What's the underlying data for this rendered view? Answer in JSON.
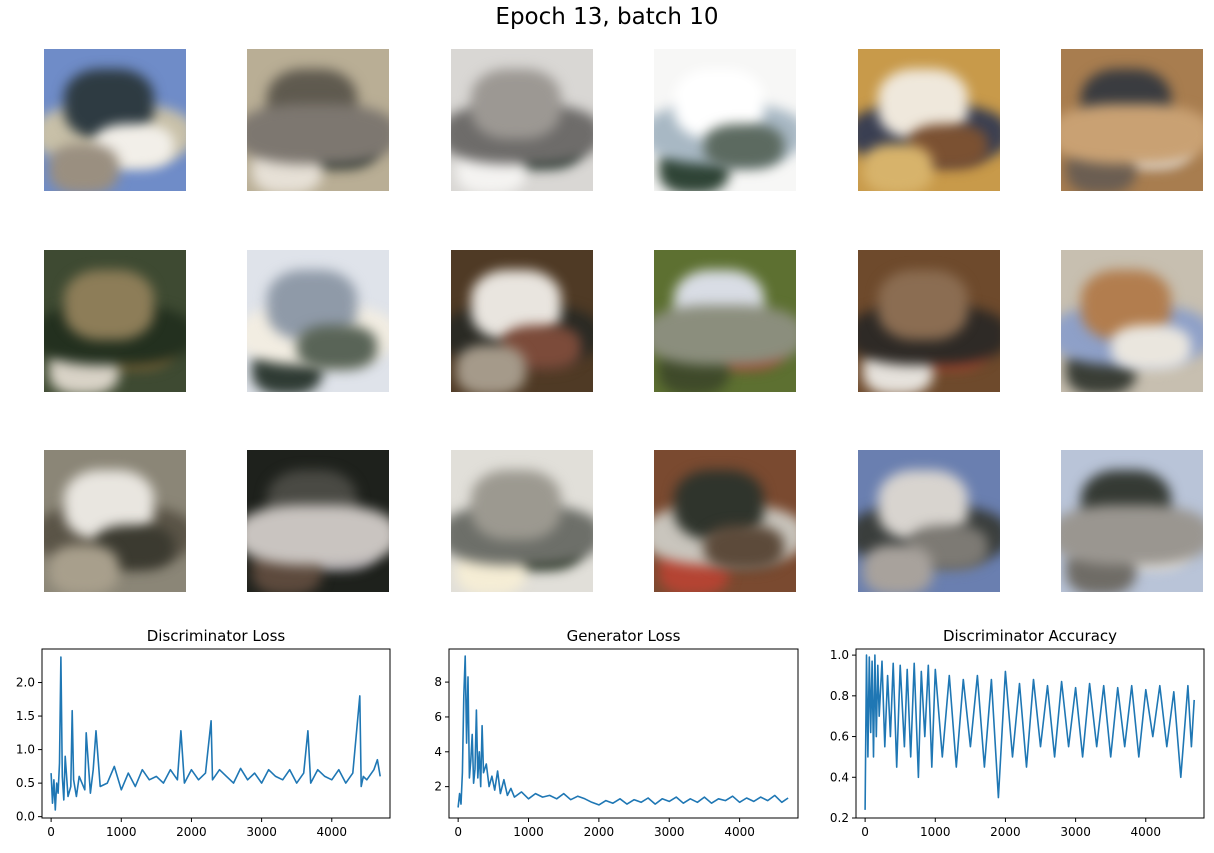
{
  "figure": {
    "title": "Epoch 13, batch 10",
    "samples": [
      {
        "colors": [
          "#6f8cc8",
          "#c8c0a8",
          "#2e3b42",
          "#f2efe9",
          "#9a8f80"
        ]
      },
      {
        "colors": [
          "#b9ae95",
          "#5f5a4f",
          "#2d3630",
          "#e6e0d6",
          "#7d7770"
        ]
      },
      {
        "colors": [
          "#d9d7d4",
          "#2a3a32",
          "#f4f3f1",
          "#6e6c6a",
          "#9c9893"
        ]
      },
      {
        "colors": [
          "#f7f7f6",
          "#2f4436",
          "#a8b8c4",
          "#ffffff",
          "#5c6a60"
        ]
      },
      {
        "colors": [
          "#c89a4a",
          "#3a3f52",
          "#efe8dc",
          "#7b5132",
          "#d7b36b"
        ]
      },
      {
        "colors": [
          "#a87d4f",
          "#3a3c40",
          "#e0dcd8",
          "#6b5e52",
          "#c9a173"
        ]
      },
      {
        "colors": [
          "#3e4a32",
          "#7a6438",
          "#d9d3c7",
          "#23301f",
          "#8d7d58"
        ]
      },
      {
        "colors": [
          "#dfe3ea",
          "#2f3b34",
          "#f2ede2",
          "#8f9aa8",
          "#596457"
        ]
      },
      {
        "colors": [
          "#4f3a25",
          "#2a2a24",
          "#e9e5df",
          "#7c4b3a",
          "#a59a8a"
        ]
      },
      {
        "colors": [
          "#5d7031",
          "#d9dde5",
          "#a04a35",
          "#3f4a2a",
          "#8b8e7d"
        ]
      },
      {
        "colors": [
          "#6e4a2c",
          "#a8472f",
          "#e6e2dc",
          "#2e2a26",
          "#8b6d52"
        ]
      },
      {
        "colors": [
          "#c7bfb0",
          "#3a3e36",
          "#8ea0c8",
          "#b27d4e",
          "#eae6de"
        ]
      },
      {
        "colors": [
          "#8b8677",
          "#5a5447",
          "#e9e6e0",
          "#3b3a30",
          "#a89f8c"
        ]
      },
      {
        "colors": [
          "#1e211c",
          "#4a4a44",
          "#9e9aa0",
          "#5d4a3d",
          "#c9c4c0"
        ]
      },
      {
        "colors": [
          "#e1dfd9",
          "#23301f",
          "#f5edd5",
          "#6d6f69",
          "#9c9990"
        ]
      },
      {
        "colors": [
          "#7a4a30",
          "#b54433",
          "#c9c5bd",
          "#2f342c",
          "#5c4a3a"
        ]
      },
      {
        "colors": [
          "#6a7fb0",
          "#3a3e3c",
          "#d8d4cf",
          "#7d7a74",
          "#a8a29c"
        ]
      },
      {
        "colors": [
          "#b9c4d8",
          "#353a34",
          "#e6e3de",
          "#6f6c66",
          "#9a9690"
        ]
      }
    ]
  },
  "colors": {
    "line": "#1f77b4",
    "axis": "#000000"
  },
  "chart_data": [
    {
      "type": "line",
      "title": "Discriminator Loss",
      "xlim": [
        -130,
        4830
      ],
      "ylim": [
        -0.02,
        2.5
      ],
      "xticks": [
        0,
        1000,
        2000,
        3000,
        4000
      ],
      "yticks": [
        0.0,
        0.5,
        1.0,
        1.5,
        2.0
      ],
      "ytick_labels": [
        "0.0",
        "0.5",
        "1.0",
        "1.5",
        "2.0"
      ],
      "x": [
        0,
        20,
        40,
        60,
        80,
        100,
        120,
        140,
        160,
        180,
        200,
        240,
        280,
        300,
        320,
        360,
        400,
        480,
        500,
        560,
        600,
        640,
        700,
        800,
        900,
        1000,
        1100,
        1200,
        1300,
        1400,
        1500,
        1600,
        1700,
        1800,
        1850,
        1900,
        2000,
        2100,
        2200,
        2280,
        2300,
        2400,
        2500,
        2600,
        2700,
        2800,
        2900,
        3000,
        3100,
        3200,
        3300,
        3400,
        3500,
        3600,
        3660,
        3700,
        3800,
        3900,
        4000,
        4100,
        4200,
        4300,
        4400,
        4420,
        4450,
        4500,
        4600,
        4650,
        4690
      ],
      "y": [
        0.65,
        0.2,
        0.55,
        0.1,
        0.5,
        0.35,
        0.8,
        2.38,
        0.6,
        0.25,
        0.9,
        0.3,
        0.45,
        1.58,
        0.55,
        0.3,
        0.6,
        0.4,
        1.25,
        0.35,
        0.7,
        1.28,
        0.45,
        0.5,
        0.75,
        0.4,
        0.65,
        0.45,
        0.7,
        0.55,
        0.6,
        0.5,
        0.7,
        0.55,
        1.28,
        0.5,
        0.7,
        0.55,
        0.65,
        1.43,
        0.55,
        0.7,
        0.6,
        0.5,
        0.72,
        0.55,
        0.65,
        0.5,
        0.7,
        0.6,
        0.55,
        0.7,
        0.5,
        0.65,
        1.28,
        0.5,
        0.7,
        0.6,
        0.55,
        0.7,
        0.5,
        0.65,
        1.8,
        0.45,
        0.6,
        0.55,
        0.7,
        0.85,
        0.6
      ]
    },
    {
      "type": "line",
      "title": "Generator Loss",
      "xlim": [
        -130,
        4830
      ],
      "ylim": [
        0.2,
        9.9
      ],
      "xticks": [
        0,
        1000,
        2000,
        3000,
        4000
      ],
      "yticks": [
        2,
        4,
        6,
        8
      ],
      "ytick_labels": [
        "2",
        "4",
        "6",
        "8"
      ],
      "x": [
        0,
        20,
        40,
        60,
        80,
        100,
        120,
        140,
        160,
        180,
        200,
        220,
        240,
        260,
        280,
        300,
        320,
        340,
        360,
        400,
        440,
        480,
        520,
        560,
        600,
        650,
        700,
        750,
        800,
        900,
        1000,
        1100,
        1200,
        1300,
        1400,
        1500,
        1600,
        1700,
        1800,
        1900,
        2000,
        2100,
        2200,
        2300,
        2400,
        2500,
        2600,
        2700,
        2800,
        2900,
        3000,
        3100,
        3200,
        3300,
        3400,
        3500,
        3600,
        3700,
        3800,
        3900,
        4000,
        4100,
        4200,
        4300,
        4400,
        4500,
        4600,
        4690
      ],
      "y": [
        0.8,
        1.6,
        1.0,
        2.8,
        7.2,
        9.5,
        4.5,
        8.3,
        2.5,
        3.5,
        5.0,
        2.2,
        3.0,
        6.4,
        2.5,
        4.0,
        2.0,
        5.5,
        2.8,
        3.3,
        2.0,
        2.6,
        1.8,
        2.9,
        1.6,
        2.4,
        1.5,
        1.9,
        1.4,
        1.7,
        1.3,
        1.6,
        1.4,
        1.5,
        1.3,
        1.6,
        1.25,
        1.45,
        1.3,
        1.1,
        0.95,
        1.2,
        1.05,
        1.3,
        1.0,
        1.25,
        1.1,
        1.35,
        1.0,
        1.3,
        1.15,
        1.4,
        1.05,
        1.3,
        1.1,
        1.4,
        1.05,
        1.3,
        1.2,
        1.45,
        1.1,
        1.35,
        1.15,
        1.4,
        1.2,
        1.5,
        1.1,
        1.35
      ]
    },
    {
      "type": "line",
      "title": "Discriminator Accuracy",
      "xlim": [
        -130,
        4830
      ],
      "ylim": [
        0.2,
        1.03
      ],
      "xticks": [
        0,
        1000,
        2000,
        3000,
        4000
      ],
      "yticks": [
        0.2,
        0.4,
        0.6,
        0.8,
        1.0
      ],
      "ytick_labels": [
        "0.2",
        "0.4",
        "0.6",
        "0.8",
        "1.0"
      ],
      "x": [
        0,
        20,
        40,
        60,
        80,
        100,
        120,
        140,
        160,
        180,
        200,
        240,
        280,
        320,
        360,
        400,
        450,
        500,
        560,
        600,
        650,
        700,
        760,
        800,
        850,
        900,
        950,
        1000,
        1100,
        1200,
        1300,
        1400,
        1500,
        1600,
        1700,
        1800,
        1900,
        2000,
        2100,
        2200,
        2300,
        2400,
        2500,
        2600,
        2700,
        2800,
        2900,
        3000,
        3100,
        3200,
        3300,
        3400,
        3500,
        3600,
        3700,
        3800,
        3900,
        4000,
        4100,
        4200,
        4300,
        4400,
        4500,
        4600,
        4650,
        4690
      ],
      "y": [
        0.24,
        1.0,
        0.5,
        0.99,
        0.62,
        0.97,
        0.5,
        1.0,
        0.6,
        0.95,
        0.7,
        0.97,
        0.55,
        0.9,
        0.6,
        0.96,
        0.45,
        0.95,
        0.55,
        0.93,
        0.5,
        0.96,
        0.4,
        0.92,
        0.6,
        0.95,
        0.45,
        0.93,
        0.5,
        0.9,
        0.45,
        0.88,
        0.55,
        0.9,
        0.45,
        0.88,
        0.3,
        0.92,
        0.5,
        0.86,
        0.45,
        0.88,
        0.55,
        0.85,
        0.5,
        0.87,
        0.55,
        0.84,
        0.5,
        0.86,
        0.55,
        0.85,
        0.5,
        0.84,
        0.55,
        0.85,
        0.5,
        0.83,
        0.6,
        0.85,
        0.55,
        0.82,
        0.4,
        0.85,
        0.55,
        0.78
      ]
    }
  ]
}
